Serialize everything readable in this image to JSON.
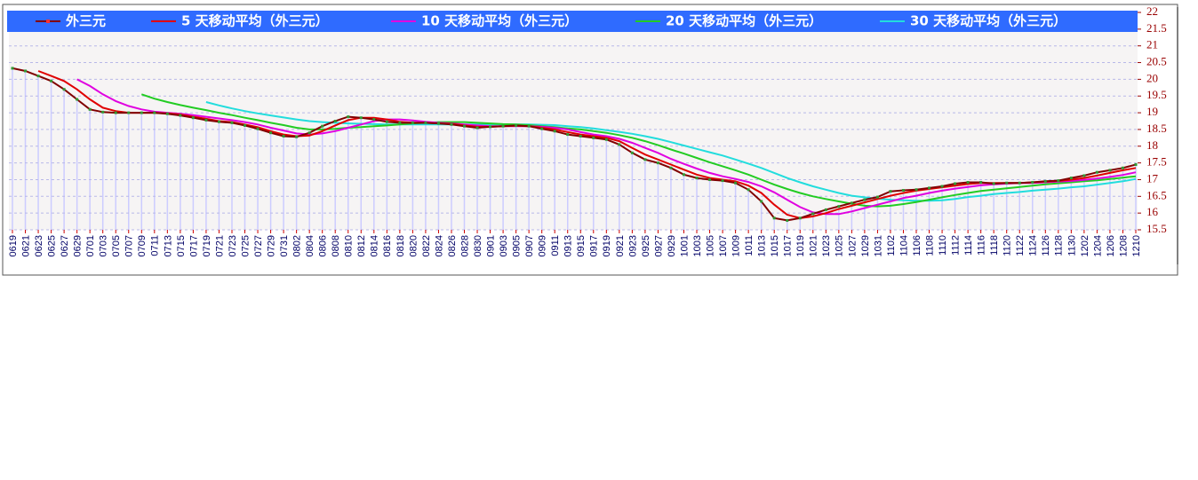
{
  "chart_data": {
    "type": "line",
    "categories": [
      "0619",
      "0621",
      "0623",
      "0625",
      "0627",
      "0629",
      "0701",
      "0703",
      "0705",
      "0707",
      "0709",
      "0711",
      "0713",
      "0715",
      "0717",
      "0719",
      "0721",
      "0723",
      "0725",
      "0727",
      "0729",
      "0731",
      "0802",
      "0804",
      "0806",
      "0808",
      "0810",
      "0812",
      "0814",
      "0816",
      "0818",
      "0820",
      "0822",
      "0824",
      "0826",
      "0828",
      "0830",
      "0901",
      "0903",
      "0905",
      "0907",
      "0909",
      "0911",
      "0913",
      "0915",
      "0917",
      "0919",
      "0921",
      "0923",
      "0925",
      "0927",
      "0929",
      "1001",
      "1003",
      "1005",
      "1007",
      "1009",
      "1011",
      "1013",
      "1015",
      "1017",
      "1019",
      "1021",
      "1023",
      "1025",
      "1027",
      "1029",
      "1031",
      "1102",
      "1104",
      "1106",
      "1108",
      "1110",
      "1112",
      "1114",
      "1116",
      "1118",
      "1120",
      "1122",
      "1124",
      "1126",
      "1128",
      "1130",
      "1202",
      "1204",
      "1206",
      "1208",
      "1210"
    ],
    "series": [
      {
        "name": "外三元",
        "color": "#800000",
        "marker": true,
        "values": [
          20.33,
          20.25,
          20.1,
          19.95,
          19.7,
          19.4,
          19.1,
          19.02,
          19.0,
          19.0,
          19.0,
          19.0,
          18.97,
          18.92,
          18.85,
          18.78,
          18.73,
          18.7,
          18.62,
          18.52,
          18.4,
          18.3,
          18.28,
          18.4,
          18.6,
          18.75,
          18.88,
          18.85,
          18.8,
          18.73,
          18.7,
          18.7,
          18.7,
          18.68,
          18.65,
          18.6,
          18.55,
          18.58,
          18.6,
          18.62,
          18.6,
          18.52,
          18.45,
          18.35,
          18.3,
          18.25,
          18.2,
          18.05,
          17.8,
          17.6,
          17.5,
          17.35,
          17.15,
          17.05,
          17.0,
          16.97,
          16.9,
          16.7,
          16.35,
          15.85,
          15.78,
          15.85,
          15.98,
          16.1,
          16.2,
          16.3,
          16.4,
          16.48,
          16.65,
          16.68,
          16.7,
          16.75,
          16.8,
          16.88,
          16.92,
          16.92,
          16.88,
          16.9,
          16.9,
          16.92,
          16.95,
          16.97,
          17.05,
          17.12,
          17.22,
          17.28,
          17.35,
          17.45
        ]
      },
      {
        "name": "5 天移动平均（外三元）",
        "color": "#e00000",
        "values": [
          null,
          null,
          20.25,
          20.1,
          19.95,
          19.7,
          19.4,
          19.15,
          19.05,
          19.0,
          19.0,
          19.0,
          18.98,
          18.95,
          18.88,
          18.82,
          18.75,
          18.72,
          18.65,
          18.57,
          18.45,
          18.35,
          18.3,
          18.32,
          18.45,
          18.62,
          18.78,
          18.85,
          18.85,
          18.8,
          18.73,
          18.7,
          18.7,
          18.68,
          18.67,
          18.62,
          18.58,
          18.58,
          18.6,
          18.61,
          18.6,
          18.55,
          18.5,
          18.42,
          18.35,
          18.3,
          18.25,
          18.15,
          17.95,
          17.75,
          17.6,
          17.45,
          17.3,
          17.15,
          17.05,
          17.0,
          16.95,
          16.82,
          16.6,
          16.25,
          15.95,
          15.85,
          15.9,
          16.0,
          16.12,
          16.22,
          16.32,
          16.42,
          16.52,
          16.6,
          16.67,
          16.72,
          16.77,
          16.82,
          16.87,
          16.9,
          16.9,
          16.9,
          16.9,
          16.92,
          16.94,
          16.96,
          17.0,
          17.05,
          17.12,
          17.2,
          17.28,
          17.35
        ]
      },
      {
        "name": "10 天移动平均（外三元）",
        "color": "#e000e0",
        "values": [
          null,
          null,
          null,
          null,
          null,
          20.0,
          19.8,
          19.55,
          19.35,
          19.2,
          19.1,
          19.03,
          19.0,
          18.97,
          18.93,
          18.88,
          18.83,
          18.78,
          18.72,
          18.65,
          18.55,
          18.47,
          18.38,
          18.35,
          18.38,
          18.45,
          18.55,
          18.65,
          18.75,
          18.8,
          18.8,
          18.77,
          18.73,
          18.7,
          18.68,
          18.65,
          18.62,
          18.6,
          18.6,
          18.6,
          18.6,
          18.58,
          18.55,
          18.5,
          18.42,
          18.35,
          18.3,
          18.22,
          18.1,
          17.95,
          17.8,
          17.62,
          17.47,
          17.33,
          17.2,
          17.1,
          17.02,
          16.93,
          16.8,
          16.62,
          16.4,
          16.18,
          16.02,
          15.97,
          15.97,
          16.05,
          16.15,
          16.25,
          16.35,
          16.45,
          16.52,
          16.6,
          16.67,
          16.73,
          16.78,
          16.83,
          16.86,
          16.88,
          16.9,
          16.9,
          16.92,
          16.94,
          16.96,
          16.99,
          17.03,
          17.08,
          17.14,
          17.22
        ]
      },
      {
        "name": "20 天移动平均（外三元）",
        "color": "#22cc22",
        "values": [
          null,
          null,
          null,
          null,
          null,
          null,
          null,
          null,
          null,
          null,
          19.55,
          19.42,
          19.32,
          19.23,
          19.15,
          19.08,
          19.0,
          18.93,
          18.85,
          18.78,
          18.7,
          18.63,
          18.55,
          18.5,
          18.5,
          18.52,
          18.55,
          18.57,
          18.6,
          18.62,
          18.65,
          18.68,
          18.7,
          18.72,
          18.72,
          18.72,
          18.7,
          18.68,
          18.66,
          18.65,
          18.63,
          18.6,
          18.57,
          18.53,
          18.5,
          18.45,
          18.4,
          18.33,
          18.25,
          18.15,
          18.03,
          17.9,
          17.78,
          17.65,
          17.52,
          17.4,
          17.28,
          17.15,
          17.0,
          16.85,
          16.72,
          16.6,
          16.5,
          16.42,
          16.35,
          16.28,
          16.22,
          16.2,
          16.22,
          16.27,
          16.33,
          16.4,
          16.47,
          16.54,
          16.6,
          16.66,
          16.7,
          16.74,
          16.78,
          16.82,
          16.86,
          16.89,
          16.92,
          16.95,
          16.98,
          17.02,
          17.06,
          17.1
        ]
      },
      {
        "name": "30 天移动平均（外三元）",
        "color": "#22dddd",
        "values": [
          null,
          null,
          null,
          null,
          null,
          null,
          null,
          null,
          null,
          null,
          null,
          null,
          null,
          null,
          null,
          19.32,
          19.22,
          19.13,
          19.05,
          18.98,
          18.92,
          18.86,
          18.8,
          18.75,
          18.72,
          18.7,
          18.68,
          18.67,
          18.66,
          18.65,
          18.65,
          18.65,
          18.65,
          18.65,
          18.65,
          18.65,
          18.65,
          18.65,
          18.65,
          18.65,
          18.65,
          18.64,
          18.63,
          18.6,
          18.57,
          18.53,
          18.48,
          18.43,
          18.37,
          18.3,
          18.22,
          18.12,
          18.02,
          17.92,
          17.82,
          17.72,
          17.6,
          17.48,
          17.35,
          17.2,
          17.05,
          16.92,
          16.8,
          16.7,
          16.6,
          16.52,
          16.47,
          16.43,
          16.4,
          16.38,
          16.37,
          16.37,
          16.38,
          16.42,
          16.48,
          16.52,
          16.57,
          16.6,
          16.63,
          16.67,
          16.7,
          16.73,
          16.77,
          16.8,
          16.85,
          16.9,
          16.95,
          17.02
        ]
      }
    ],
    "ylim": [
      15.5,
      22
    ],
    "yticks": [
      15.5,
      16,
      16.5,
      17,
      17.5,
      18,
      18.5,
      19,
      19.5,
      20,
      20.5,
      21,
      21.5,
      22
    ],
    "grid": true,
    "legend": "top",
    "bar_color": "#ccccff"
  }
}
